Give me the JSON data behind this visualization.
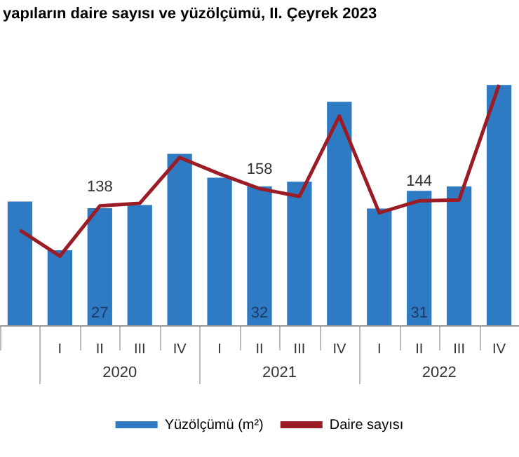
{
  "chart_data": {
    "type": "bar",
    "title": "yapıların daire sayısı ve yüzölçümü, II. Çeyrek 2023",
    "categories": [
      null,
      "I",
      "II",
      "III",
      "IV",
      "I",
      "II",
      "III",
      "IV",
      "I",
      "II",
      "III",
      "IV"
    ],
    "series": [
      {
        "name": "Yüzölçümü (m²)",
        "color": "#2e7bc4",
        "values": [
          28.5,
          17.3,
          27,
          27.7,
          39.5,
          34,
          32,
          33.1,
          51.5,
          26.9,
          31,
          32,
          55.4
        ],
        "value_labels": [
          null,
          null,
          "27",
          null,
          null,
          null,
          "32",
          null,
          null,
          null,
          "31",
          null,
          null
        ]
      },
      {
        "name": "Daire sayısı",
        "type": "line",
        "axis": "y2",
        "color": "#9b1c24",
        "values": [
          110,
          80,
          138,
          141,
          194,
          175,
          158,
          149,
          242,
          130,
          144,
          145,
          278
        ],
        "value_labels": [
          null,
          null,
          "138",
          null,
          null,
          null,
          "158",
          null,
          null,
          null,
          "144",
          null,
          null
        ]
      }
    ],
    "annotations": [
      "2020",
      "2021",
      "2022"
    ],
    "legend": "bottom",
    "marker": "none"
  }
}
